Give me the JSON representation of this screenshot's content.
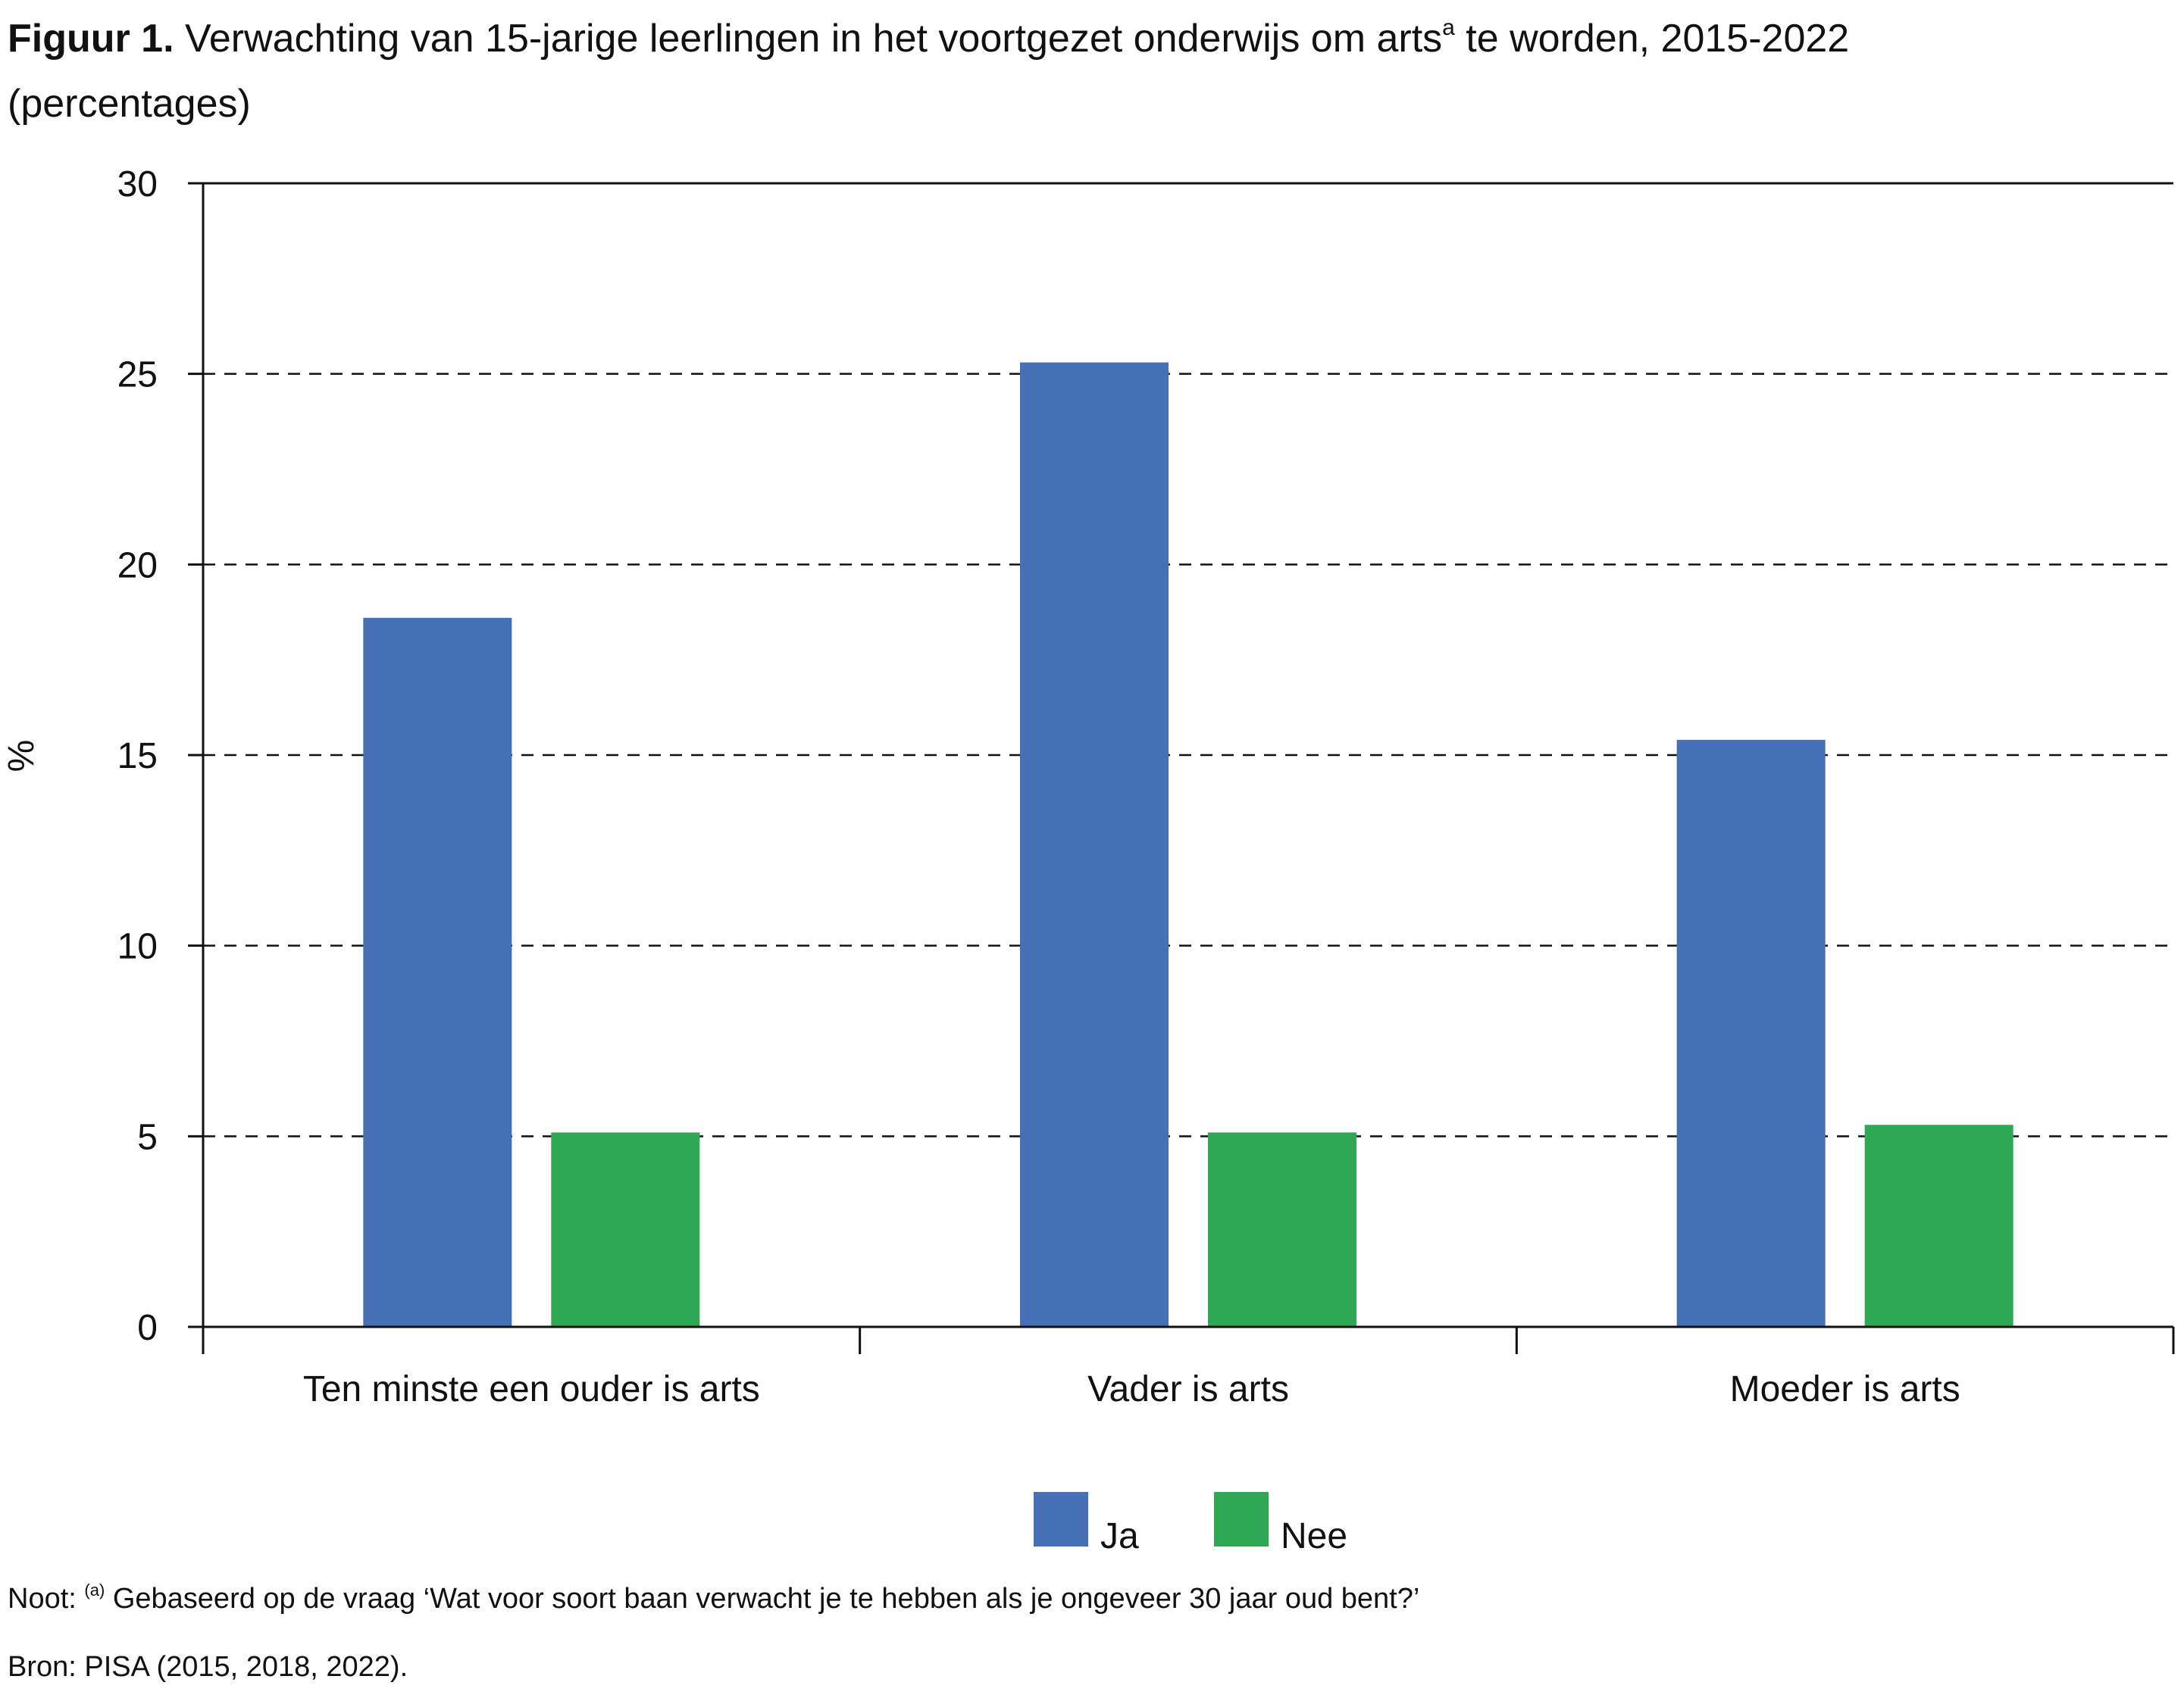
{
  "title": {
    "label": "Figuur 1.",
    "text_before_sup": " Verwachting van 15-jarige leerlingen in het voortgezet onderwijs om arts",
    "sup": "a",
    "text_after_sup": " te worden, 2015-2022",
    "line2": "(percentages)"
  },
  "note": {
    "prefix": "Noot: ",
    "sup": "(a)",
    "text": " Gebaseerd op de vraag ‘Wat voor soort baan verwacht je te hebben als je ongeveer 30 jaar oud bent?’"
  },
  "source": "Bron: PISA (2015, 2018, 2022).",
  "chart_data": {
    "type": "bar",
    "categories": [
      "Ten minste een ouder is arts",
      "Vader is arts",
      "Moeder is arts"
    ],
    "series": [
      {
        "name": "Ja",
        "color": "#4570b5",
        "values": [
          18.6,
          25.3,
          15.4
        ]
      },
      {
        "name": "Nee",
        "color": "#2ea854",
        "values": [
          5.1,
          5.1,
          5.3
        ]
      }
    ],
    "ylabel": "%",
    "ylim": [
      0,
      30
    ],
    "yticks": [
      "0",
      "5",
      "10",
      "15",
      "20",
      "25",
      "30"
    ],
    "grid": "dashed horizontal",
    "legend": "bottom-center"
  }
}
